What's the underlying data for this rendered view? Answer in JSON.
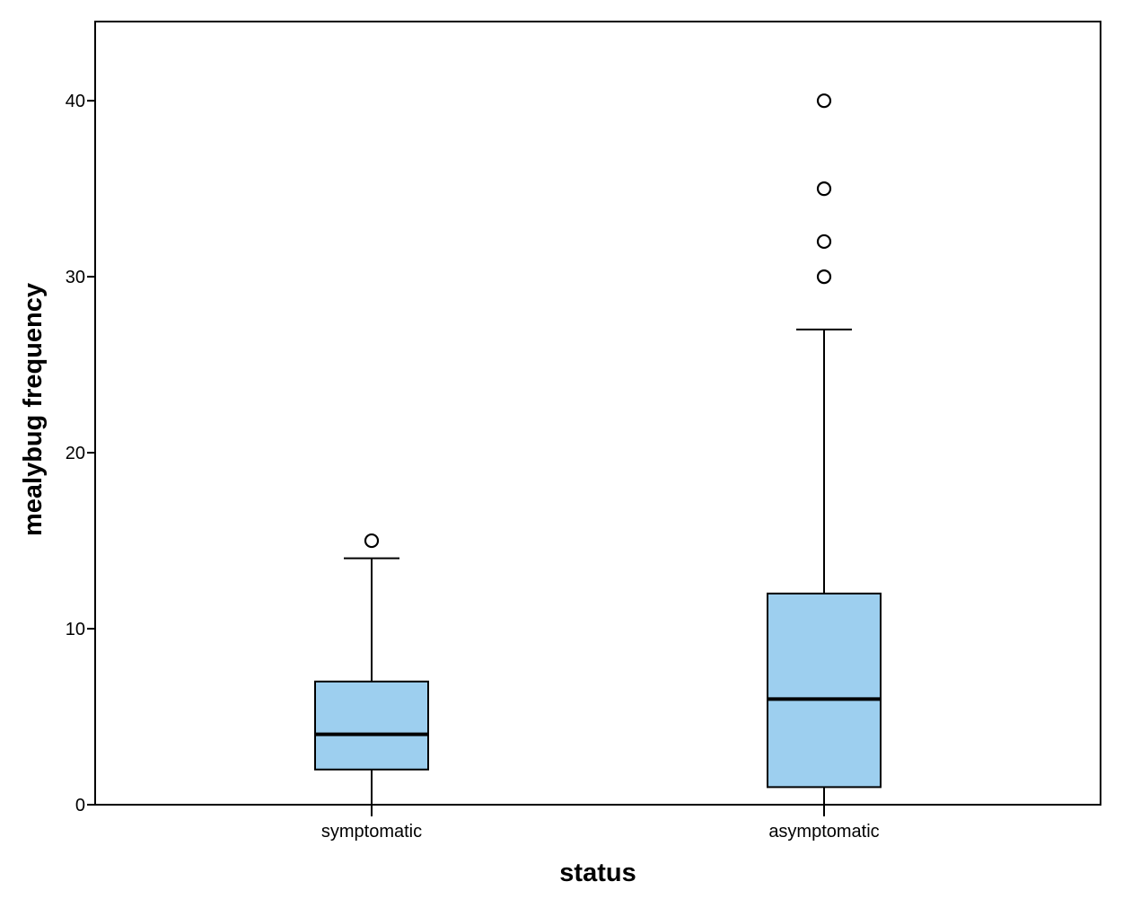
{
  "chart_data": {
    "type": "boxplot",
    "title": "",
    "xlabel": "status",
    "ylabel": "mealybug frequency",
    "ylim": [
      0,
      44.5
    ],
    "yticks": [
      0,
      10,
      20,
      30,
      40
    ],
    "grid": false,
    "legend": "none",
    "box_color": "#9dcfef",
    "categories": [
      "symptomatic",
      "asymptomatic"
    ],
    "boxes": [
      {
        "category": "symptomatic",
        "whisker_low": 0,
        "q1": 2,
        "median": 4,
        "q3": 7,
        "whisker_high": 14,
        "outliers": [
          15
        ]
      },
      {
        "category": "asymptomatic",
        "whisker_low": 0,
        "q1": 1,
        "median": 6,
        "q3": 12,
        "whisker_high": 27,
        "outliers": [
          30,
          32,
          35,
          40
        ]
      }
    ]
  }
}
